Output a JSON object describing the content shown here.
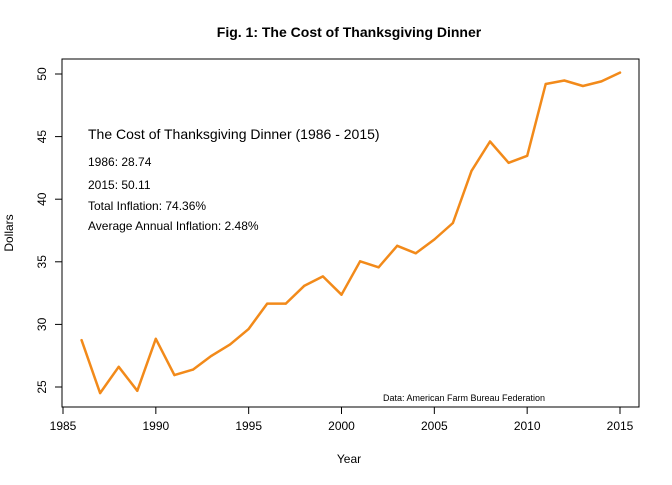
{
  "chart_data": {
    "type": "line",
    "title": "Fig. 1: The Cost of Thanksgiving Dinner",
    "xlabel": "Year",
    "ylabel": "Dollars",
    "xlim": [
      1985,
      2015
    ],
    "ylim": [
      25,
      50
    ],
    "x_ticks": [
      "1985",
      "1990",
      "1995",
      "2000",
      "2005",
      "2010",
      "2015"
    ],
    "y_ticks": [
      "25",
      "30",
      "35",
      "40",
      "45",
      "50"
    ],
    "grid": false,
    "line_color": "#F28A1A",
    "series": [
      {
        "x": [
          1986,
          1987,
          1988,
          1989,
          1990,
          1991,
          1992,
          1993,
          1994,
          1995,
          1996,
          1997,
          1998,
          1999,
          2000,
          2001,
          2002,
          2003,
          2004,
          2005,
          2006,
          2007,
          2008,
          2009,
          2010,
          2011,
          2012,
          2013,
          2014,
          2015
        ],
        "values": [
          28.74,
          24.51,
          26.61,
          24.7,
          28.85,
          25.95,
          26.39,
          27.49,
          28.4,
          29.64,
          31.66,
          31.66,
          33.09,
          33.83,
          32.37,
          35.04,
          34.56,
          36.28,
          35.68,
          36.78,
          38.1,
          42.26,
          44.61,
          42.91,
          43.47,
          49.2,
          49.48,
          49.04,
          49.41,
          50.11
        ]
      }
    ],
    "annotations": {
      "heading": "The Cost of Thanksgiving Dinner (1986 - 2015)",
      "lines": [
        "1986: 28.74",
        "2015: 50.11",
        "Total Inflation: 74.36%",
        "Average Annual Inflation: 2.48%"
      ],
      "source": "Data: American Farm Bureau Federation"
    }
  }
}
